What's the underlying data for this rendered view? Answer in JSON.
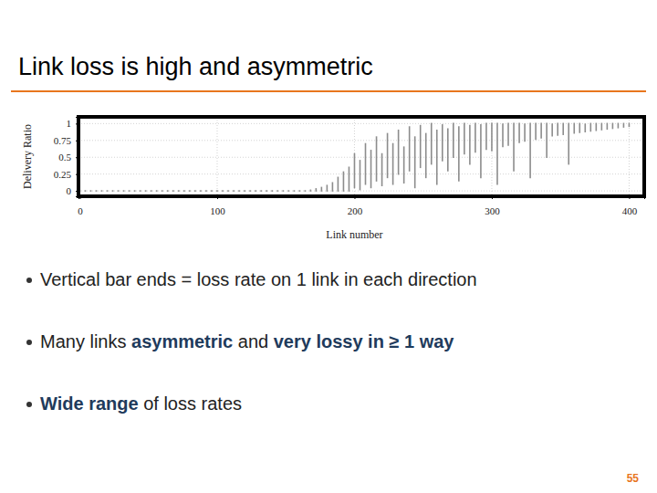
{
  "slide": {
    "title": "Link loss is high and asymmetric",
    "bullets": [
      [
        {
          "text": "Vertical bar ends = loss rate on 1 link in each direction"
        }
      ],
      [
        {
          "text": "Many links "
        },
        {
          "text": "asymmetric",
          "bold": true
        },
        {
          "text": " and "
        },
        {
          "text": "very lossy in ≥ 1 way",
          "bold": true
        }
      ],
      [
        {
          "text": "Wide range",
          "bold": true
        },
        {
          "text": " of loss rates"
        }
      ]
    ],
    "page_number": "55"
  },
  "chart_data": {
    "type": "range",
    "xlabel": "Link number",
    "ylabel": "Delivery Ratio",
    "xlim": [
      -1,
      411
    ],
    "ylim": [
      -0.08,
      1.1
    ],
    "xticks": [
      0,
      100,
      200,
      300,
      400
    ],
    "yticks": [
      0,
      0.25,
      0.5,
      0.75,
      1
    ],
    "grid": true,
    "color": "#8c8c8c",
    "x": [
      0,
      4,
      8,
      12,
      16,
      20,
      24,
      28,
      32,
      36,
      40,
      44,
      48,
      52,
      56,
      60,
      64,
      68,
      72,
      76,
      80,
      84,
      88,
      92,
      96,
      100,
      104,
      108,
      112,
      116,
      120,
      124,
      128,
      132,
      136,
      140,
      144,
      148,
      152,
      156,
      160,
      164,
      168,
      172,
      176,
      180,
      184,
      188,
      192,
      196,
      200,
      204,
      208,
      212,
      216,
      220,
      224,
      228,
      232,
      236,
      240,
      244,
      248,
      252,
      256,
      260,
      264,
      268,
      272,
      276,
      280,
      284,
      288,
      292,
      296,
      300,
      304,
      308,
      312,
      316,
      320,
      324,
      328,
      332,
      336,
      340,
      344,
      348,
      352,
      356,
      360,
      364,
      368,
      372,
      376,
      380,
      384,
      388,
      392,
      396,
      400
    ],
    "low": [
      0,
      0,
      0,
      0,
      0,
      0,
      0,
      0,
      0,
      0,
      0,
      0,
      0,
      0,
      0,
      0,
      0,
      0,
      0,
      0,
      0,
      0,
      0,
      0,
      0,
      0,
      0,
      0,
      0,
      0,
      0,
      0,
      0,
      0,
      0,
      0,
      0,
      0,
      0,
      0,
      0,
      0,
      0,
      0,
      0,
      0,
      0,
      0,
      0,
      0,
      0.05,
      0.02,
      0.1,
      0.05,
      0.15,
      0.08,
      0.2,
      0.1,
      0.25,
      0.12,
      0.3,
      0.05,
      0.35,
      0.2,
      0.4,
      0.1,
      0.45,
      0.3,
      0.5,
      0.15,
      0.55,
      0.4,
      0.58,
      0.2,
      0.62,
      0.6,
      0.1,
      0.66,
      0.68,
      0.3,
      0.72,
      0.74,
      0.2,
      0.77,
      0.79,
      0.5,
      0.82,
      0.83,
      0.84,
      0.4,
      0.86,
      0.87,
      0.88,
      0.89,
      0.9,
      0.91,
      0.92,
      0.93,
      0.94,
      0.95,
      0.96
    ],
    "high": [
      0,
      0,
      0,
      0,
      0,
      0,
      0,
      0,
      0,
      0,
      0,
      0,
      0,
      0,
      0,
      0,
      0,
      0,
      0,
      0,
      0,
      0,
      0,
      0,
      0,
      0,
      0,
      0,
      0,
      0,
      0,
      0,
      0,
      0,
      0,
      0,
      0,
      0,
      0,
      0,
      0,
      0,
      0.01,
      0.03,
      0.05,
      0.08,
      0.12,
      0.2,
      0.28,
      0.35,
      0.55,
      0.45,
      0.7,
      0.6,
      0.8,
      0.55,
      0.85,
      0.7,
      0.9,
      0.65,
      0.95,
      0.8,
      0.97,
      0.85,
      1,
      0.9,
      0.98,
      0.92,
      1,
      0.95,
      1,
      0.97,
      1,
      0.98,
      1,
      1,
      1,
      0.99,
      1,
      1,
      1,
      0.99,
      1,
      1,
      1,
      1,
      0.99,
      1,
      1,
      1,
      1,
      1,
      0.99,
      1,
      1,
      1,
      1,
      1,
      1,
      1,
      1
    ]
  }
}
